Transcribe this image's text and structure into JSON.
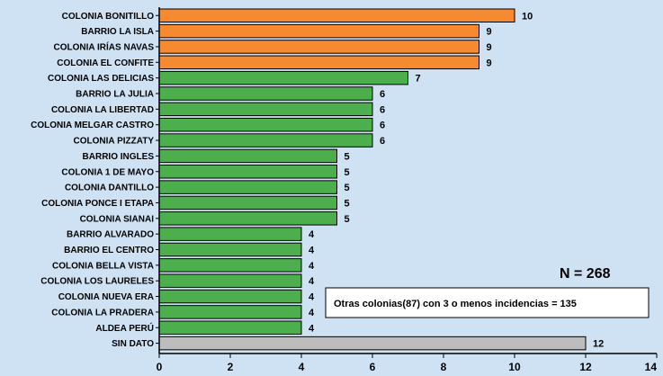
{
  "chart_data": {
    "type": "bar",
    "orientation": "horizontal",
    "categories": [
      "COLONIA BONITILLO",
      "BARRIO LA ISLA",
      "COLONIA IRÍAS NAVAS",
      "COLONIA EL CONFITE",
      "COLONIA LAS DELICIAS",
      "BARRIO LA JULIA",
      "COLONIA LA LIBERTAD",
      "COLONIA MELGAR CASTRO",
      "COLONIA PIZZATY",
      "BARRIO INGLES",
      "COLONIA 1 DE MAYO",
      "COLONIA DANTILLO",
      "COLONIA PONCE I ETAPA",
      "COLONIA SIANAI",
      "BARRIO ALVARADO",
      "BARRIO EL CENTRO",
      "COLONIA BELLA VISTA",
      "COLONIA LOS LAURELES",
      "COLONIA NUEVA ERA",
      "COLONIA LA PRADERA",
      "ALDEA PERÚ",
      "SIN DATO"
    ],
    "values": [
      10,
      9,
      9,
      9,
      7,
      6,
      6,
      6,
      6,
      5,
      5,
      5,
      5,
      5,
      4,
      4,
      4,
      4,
      4,
      4,
      4,
      12
    ],
    "bar_colors": [
      "#f58a31",
      "#f58a31",
      "#f58a31",
      "#f58a31",
      "#4cae4c",
      "#4cae4c",
      "#4cae4c",
      "#4cae4c",
      "#4cae4c",
      "#4cae4c",
      "#4cae4c",
      "#4cae4c",
      "#4cae4c",
      "#4cae4c",
      "#4cae4c",
      "#4cae4c",
      "#4cae4c",
      "#4cae4c",
      "#4cae4c",
      "#4cae4c",
      "#4cae4c",
      "#bdbdbd"
    ],
    "xticks": [
      0,
      2,
      4,
      6,
      8,
      10,
      12,
      14
    ],
    "xlim": [
      0,
      14
    ],
    "grid": false,
    "total_label": "N = 268",
    "note": "Otras colonias(87) con 3 o menos incidencias = 135"
  },
  "colors": {
    "background": "#cfe2f3",
    "bar_stroke": "#000000",
    "note_box": "#ffffff"
  }
}
